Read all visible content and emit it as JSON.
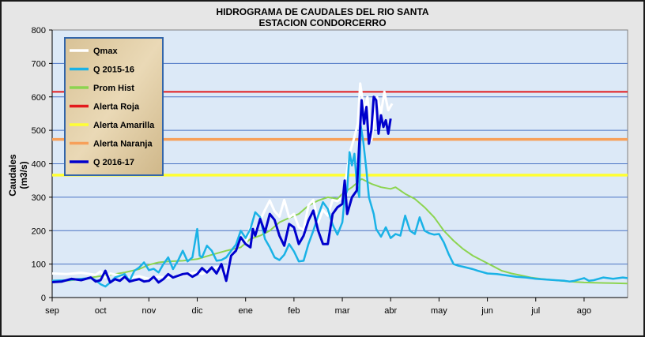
{
  "chart_data": {
    "type": "line",
    "title": "HIDROGRAMA DE CAUDALES  DEL RIO SANTA",
    "subtitle": "ESTACION CONDORCERRO",
    "ylabel": "Caudales (m3/s)",
    "xlabel": "",
    "ylim": [
      0,
      800
    ],
    "yticks": [
      0,
      100,
      200,
      300,
      400,
      500,
      600,
      700,
      800
    ],
    "x_months": [
      "sep",
      "oct",
      "nov",
      "dic",
      "ene",
      "feb",
      "mar",
      "abr",
      "may",
      "jun",
      "jul",
      "ago"
    ],
    "x_unit": "month index (0 = start of sep)",
    "xlim": [
      0,
      11.9
    ],
    "grid": "horizontal",
    "legend": "top-left",
    "thresholds": [
      {
        "name": "Alerta Roja",
        "value": 615,
        "color": "#e31a1c"
      },
      {
        "name": "Alerta Naranja",
        "value": 473,
        "color": "#f7a05a"
      },
      {
        "name": "Alerta Amarilla",
        "value": 366,
        "color": "#ffff33"
      }
    ],
    "series": [
      {
        "name": "Qmax",
        "color": "#ffffff",
        "points": [
          [
            0,
            72
          ],
          [
            0.3,
            70
          ],
          [
            0.6,
            74
          ],
          [
            0.9,
            68
          ],
          [
            1.0,
            78
          ],
          [
            1.1,
            60
          ],
          [
            1.2,
            72
          ],
          [
            1.4,
            66
          ],
          [
            1.6,
            58
          ],
          [
            1.8,
            64
          ],
          [
            2.0,
            56
          ],
          [
            2.2,
            62
          ],
          [
            2.4,
            60
          ],
          [
            2.6,
            64
          ],
          [
            2.8,
            70
          ],
          [
            3.0,
            76
          ],
          [
            3.1,
            70
          ],
          [
            3.3,
            88
          ],
          [
            3.5,
            92
          ],
          [
            3.6,
            72
          ],
          [
            3.7,
            125
          ],
          [
            3.8,
            140
          ],
          [
            3.9,
            175
          ],
          [
            4.0,
            160
          ],
          [
            4.1,
            212
          ],
          [
            4.2,
            196
          ],
          [
            4.3,
            230
          ],
          [
            4.4,
            262
          ],
          [
            4.5,
            290
          ],
          [
            4.6,
            258
          ],
          [
            4.7,
            242
          ],
          [
            4.8,
            292
          ],
          [
            4.9,
            240
          ],
          [
            5.0,
            250
          ],
          [
            5.1,
            210
          ],
          [
            5.2,
            202
          ],
          [
            5.3,
            276
          ],
          [
            5.4,
            292
          ],
          [
            5.5,
            225
          ],
          [
            5.6,
            262
          ],
          [
            5.7,
            245
          ],
          [
            5.8,
            292
          ],
          [
            5.9,
            288
          ],
          [
            6.0,
            300
          ],
          [
            6.05,
            330
          ],
          [
            6.15,
            430
          ],
          [
            6.25,
            480
          ],
          [
            6.32,
            520
          ],
          [
            6.37,
            640
          ],
          [
            6.45,
            560
          ],
          [
            6.52,
            600
          ],
          [
            6.6,
            470
          ],
          [
            6.68,
            555
          ],
          [
            6.72,
            600
          ],
          [
            6.8,
            552
          ],
          [
            6.87,
            615
          ],
          [
            6.95,
            560
          ],
          [
            7.03,
            580
          ]
        ]
      },
      {
        "name": "Q 2015-16",
        "color": "#1ab2e6",
        "points": [
          [
            0,
            50
          ],
          [
            0.3,
            52
          ],
          [
            0.5,
            55
          ],
          [
            0.8,
            58
          ],
          [
            0.9,
            52
          ],
          [
            1.0,
            40
          ],
          [
            1.1,
            33
          ],
          [
            1.2,
            45
          ],
          [
            1.3,
            60
          ],
          [
            1.5,
            70
          ],
          [
            1.6,
            50
          ],
          [
            1.7,
            80
          ],
          [
            1.8,
            90
          ],
          [
            1.9,
            105
          ],
          [
            2.0,
            82
          ],
          [
            2.1,
            86
          ],
          [
            2.2,
            75
          ],
          [
            2.3,
            100
          ],
          [
            2.4,
            120
          ],
          [
            2.5,
            85
          ],
          [
            2.6,
            110
          ],
          [
            2.7,
            140
          ],
          [
            2.8,
            108
          ],
          [
            2.9,
            120
          ],
          [
            3.0,
            205
          ],
          [
            3.05,
            125
          ],
          [
            3.1,
            120
          ],
          [
            3.2,
            155
          ],
          [
            3.3,
            140
          ],
          [
            3.4,
            110
          ],
          [
            3.5,
            112
          ],
          [
            3.6,
            120
          ],
          [
            3.7,
            140
          ],
          [
            3.8,
            158
          ],
          [
            3.9,
            200
          ],
          [
            4.0,
            178
          ],
          [
            4.1,
            205
          ],
          [
            4.2,
            255
          ],
          [
            4.3,
            240
          ],
          [
            4.4,
            175
          ],
          [
            4.5,
            150
          ],
          [
            4.6,
            120
          ],
          [
            4.7,
            112
          ],
          [
            4.8,
            128
          ],
          [
            4.9,
            160
          ],
          [
            5.0,
            138
          ],
          [
            5.1,
            108
          ],
          [
            5.2,
            110
          ],
          [
            5.3,
            160
          ],
          [
            5.4,
            200
          ],
          [
            5.5,
            245
          ],
          [
            5.6,
            285
          ],
          [
            5.7,
            265
          ],
          [
            5.8,
            218
          ],
          [
            5.9,
            188
          ],
          [
            6.0,
            225
          ],
          [
            6.05,
            300
          ],
          [
            6.1,
            320
          ],
          [
            6.15,
            435
          ],
          [
            6.2,
            395
          ],
          [
            6.25,
            430
          ],
          [
            6.3,
            340
          ],
          [
            6.35,
            300
          ],
          [
            6.38,
            515
          ],
          [
            6.43,
            470
          ],
          [
            6.5,
            380
          ],
          [
            6.55,
            300
          ],
          [
            6.65,
            250
          ],
          [
            6.7,
            205
          ],
          [
            6.8,
            182
          ],
          [
            6.9,
            210
          ],
          [
            7.0,
            178
          ],
          [
            7.1,
            190
          ],
          [
            7.2,
            185
          ],
          [
            7.3,
            245
          ],
          [
            7.4,
            200
          ],
          [
            7.5,
            190
          ],
          [
            7.6,
            240
          ],
          [
            7.7,
            200
          ],
          [
            7.8,
            192
          ],
          [
            7.9,
            188
          ],
          [
            8.0,
            190
          ],
          [
            8.1,
            165
          ],
          [
            8.2,
            130
          ],
          [
            8.3,
            100
          ],
          [
            8.4,
            95
          ],
          [
            8.5,
            92
          ],
          [
            8.7,
            85
          ],
          [
            8.8,
            80
          ],
          [
            9.0,
            72
          ],
          [
            9.2,
            70
          ],
          [
            9.4,
            66
          ],
          [
            9.6,
            62
          ],
          [
            9.8,
            60
          ],
          [
            10.0,
            56
          ],
          [
            10.2,
            54
          ],
          [
            10.4,
            52
          ],
          [
            10.6,
            50
          ],
          [
            10.7,
            48
          ],
          [
            10.8,
            50
          ],
          [
            11.0,
            58
          ],
          [
            11.1,
            50
          ],
          [
            11.2,
            52
          ],
          [
            11.4,
            60
          ],
          [
            11.6,
            56
          ],
          [
            11.8,
            60
          ],
          [
            11.9,
            58
          ]
        ]
      },
      {
        "name": "Prom Hist",
        "color": "#8cd450",
        "points": [
          [
            0,
            48
          ],
          [
            0.3,
            50
          ],
          [
            0.6,
            55
          ],
          [
            0.9,
            62
          ],
          [
            1.2,
            68
          ],
          [
            1.5,
            75
          ],
          [
            1.8,
            85
          ],
          [
            2.0,
            98
          ],
          [
            2.2,
            105
          ],
          [
            2.4,
            108
          ],
          [
            2.7,
            110
          ],
          [
            3.0,
            115
          ],
          [
            3.3,
            128
          ],
          [
            3.6,
            140
          ],
          [
            3.9,
            150
          ],
          [
            4.1,
            175
          ],
          [
            4.3,
            185
          ],
          [
            4.5,
            200
          ],
          [
            4.7,
            225
          ],
          [
            4.9,
            238
          ],
          [
            5.1,
            250
          ],
          [
            5.3,
            275
          ],
          [
            5.5,
            290
          ],
          [
            5.7,
            300
          ],
          [
            5.9,
            295
          ],
          [
            6.0,
            310
          ],
          [
            6.2,
            330
          ],
          [
            6.4,
            355
          ],
          [
            6.6,
            340
          ],
          [
            6.8,
            330
          ],
          [
            7.0,
            325
          ],
          [
            7.1,
            330
          ],
          [
            7.3,
            310
          ],
          [
            7.5,
            295
          ],
          [
            7.7,
            270
          ],
          [
            7.9,
            240
          ],
          [
            8.1,
            200
          ],
          [
            8.3,
            170
          ],
          [
            8.5,
            145
          ],
          [
            8.7,
            125
          ],
          [
            8.9,
            110
          ],
          [
            9.1,
            95
          ],
          [
            9.3,
            80
          ],
          [
            9.5,
            72
          ],
          [
            9.7,
            66
          ],
          [
            9.9,
            60
          ],
          [
            10.1,
            56
          ],
          [
            10.4,
            52
          ],
          [
            10.7,
            48
          ],
          [
            11.0,
            45
          ],
          [
            11.3,
            44
          ],
          [
            11.6,
            43
          ],
          [
            11.9,
            42
          ]
        ]
      },
      {
        "name": "Q 2016-17",
        "color": "#0000cc",
        "points": [
          [
            0,
            46
          ],
          [
            0.2,
            48
          ],
          [
            0.4,
            56
          ],
          [
            0.6,
            52
          ],
          [
            0.8,
            60
          ],
          [
            0.9,
            48
          ],
          [
            1.0,
            52
          ],
          [
            1.1,
            80
          ],
          [
            1.2,
            45
          ],
          [
            1.3,
            55
          ],
          [
            1.4,
            50
          ],
          [
            1.5,
            62
          ],
          [
            1.6,
            48
          ],
          [
            1.7,
            52
          ],
          [
            1.8,
            55
          ],
          [
            1.9,
            48
          ],
          [
            2.0,
            50
          ],
          [
            2.1,
            62
          ],
          [
            2.2,
            45
          ],
          [
            2.3,
            55
          ],
          [
            2.4,
            70
          ],
          [
            2.5,
            60
          ],
          [
            2.6,
            65
          ],
          [
            2.7,
            70
          ],
          [
            2.8,
            72
          ],
          [
            2.9,
            62
          ],
          [
            3.0,
            70
          ],
          [
            3.1,
            88
          ],
          [
            3.2,
            75
          ],
          [
            3.3,
            90
          ],
          [
            3.4,
            72
          ],
          [
            3.5,
            100
          ],
          [
            3.6,
            50
          ],
          [
            3.7,
            125
          ],
          [
            3.8,
            140
          ],
          [
            3.9,
            180
          ],
          [
            4.0,
            160
          ],
          [
            4.1,
            150
          ],
          [
            4.15,
            205
          ],
          [
            4.2,
            185
          ],
          [
            4.3,
            235
          ],
          [
            4.4,
            195
          ],
          [
            4.5,
            250
          ],
          [
            4.6,
            232
          ],
          [
            4.7,
            185
          ],
          [
            4.8,
            155
          ],
          [
            4.9,
            220
          ],
          [
            5.0,
            210
          ],
          [
            5.1,
            160
          ],
          [
            5.2,
            185
          ],
          [
            5.3,
            230
          ],
          [
            5.4,
            260
          ],
          [
            5.5,
            200
          ],
          [
            5.6,
            160
          ],
          [
            5.7,
            160
          ],
          [
            5.8,
            250
          ],
          [
            5.9,
            270
          ],
          [
            6.0,
            280
          ],
          [
            6.05,
            350
          ],
          [
            6.1,
            250
          ],
          [
            6.2,
            300
          ],
          [
            6.3,
            320
          ],
          [
            6.35,
            460
          ],
          [
            6.4,
            590
          ],
          [
            6.45,
            520
          ],
          [
            6.5,
            570
          ],
          [
            6.55,
            460
          ],
          [
            6.6,
            500
          ],
          [
            6.65,
            600
          ],
          [
            6.7,
            590
          ],
          [
            6.75,
            490
          ],
          [
            6.8,
            545
          ],
          [
            6.85,
            510
          ],
          [
            6.9,
            530
          ],
          [
            6.95,
            490
          ],
          [
            7.0,
            535
          ]
        ]
      }
    ]
  }
}
